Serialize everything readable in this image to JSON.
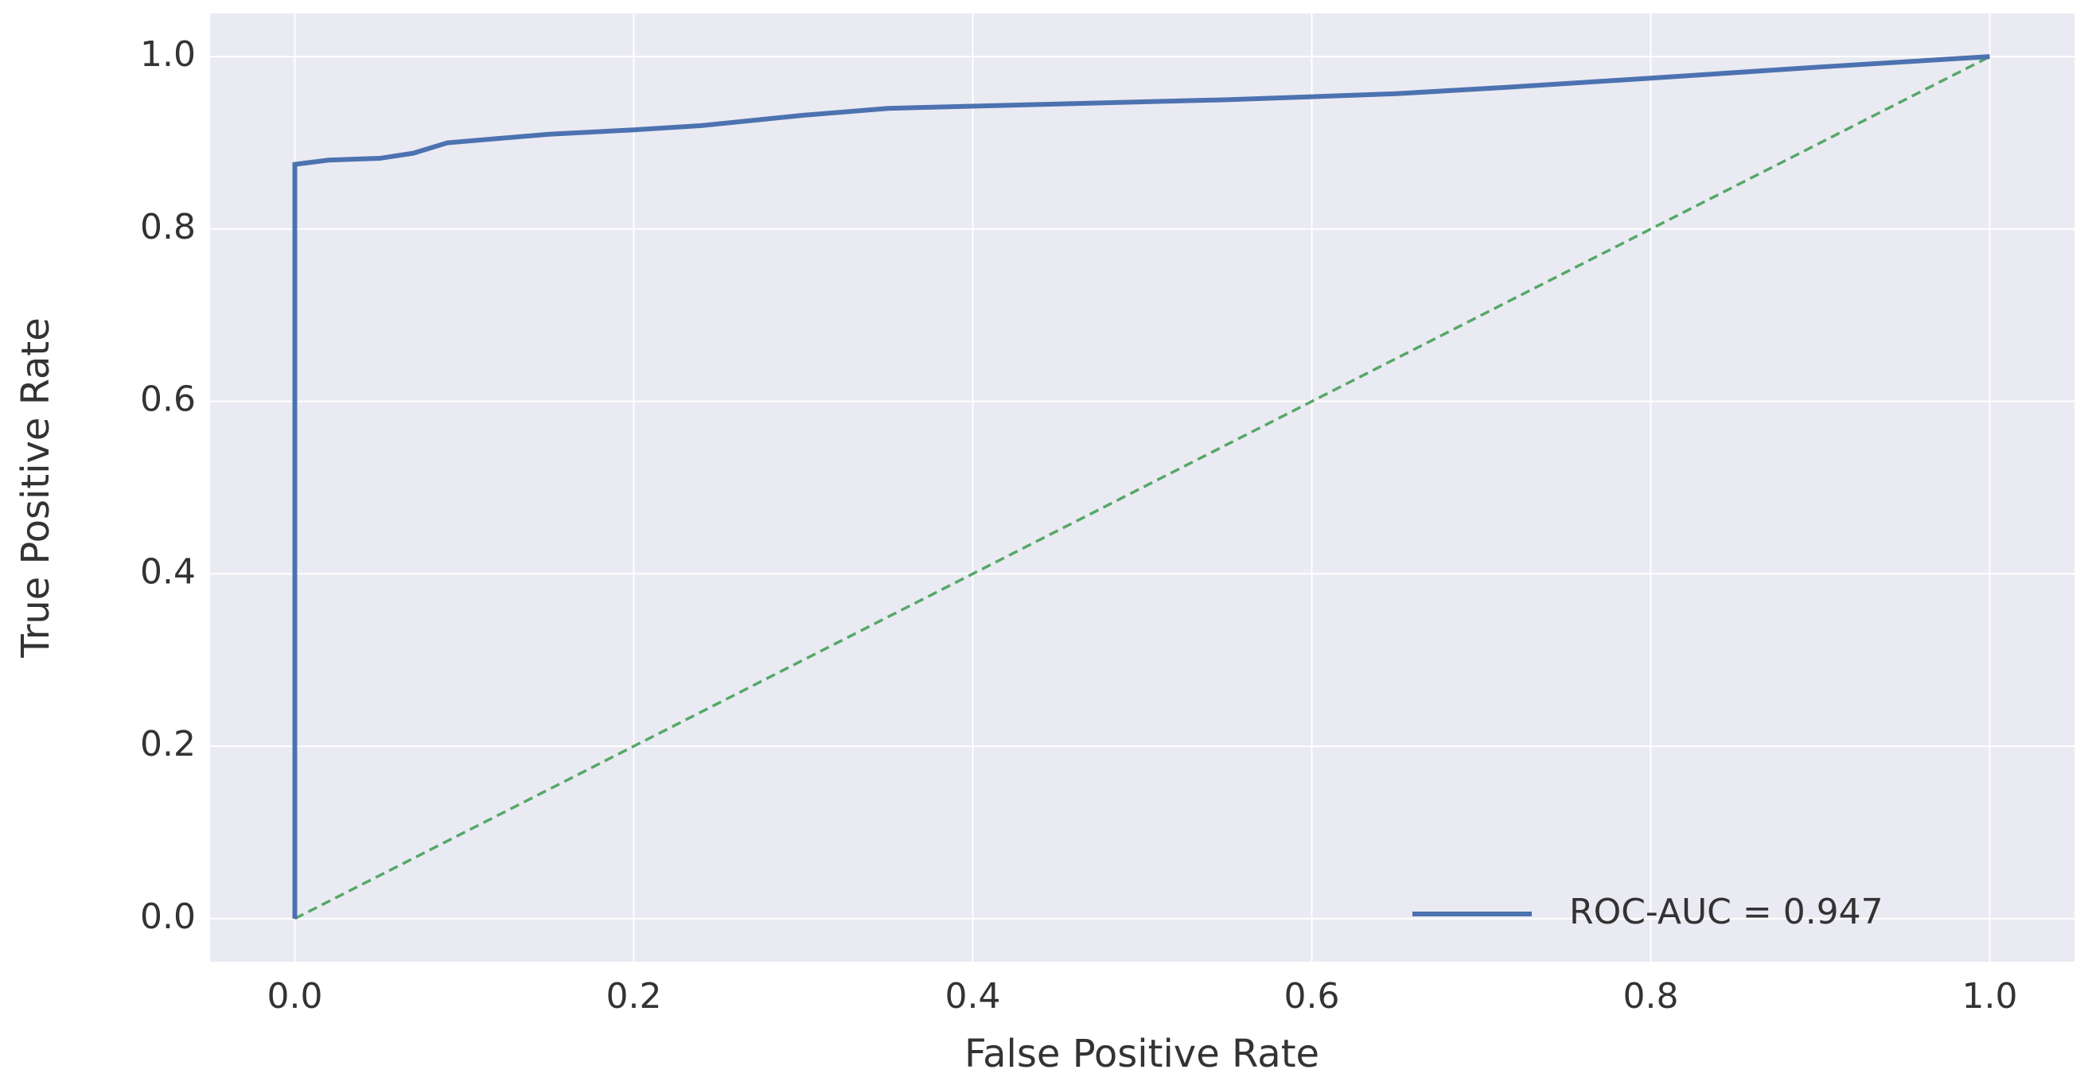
{
  "chart_data": {
    "type": "line",
    "xlabel": "False Positive Rate",
    "ylabel": "True Positive Rate",
    "xlim": [
      -0.05,
      1.05
    ],
    "ylim": [
      -0.05,
      1.05
    ],
    "xticks": [
      {
        "value": 0,
        "label": "0.0"
      },
      0.2,
      0.4,
      0.6,
      0.8,
      {
        "value": 1,
        "label": "1.0"
      }
    ],
    "yticks": [
      {
        "value": 0,
        "label": "0.0"
      },
      0.2,
      0.4,
      0.6,
      0.8,
      {
        "value": 1,
        "label": "1.0"
      }
    ],
    "grid": true,
    "legend": "lower right",
    "series": [
      {
        "name": "ROC-AUC = 0.947",
        "color": "#4c72b0",
        "style": "solid",
        "x": [
          0,
          0,
          0.02,
          0.05,
          0.07,
          0.09,
          0.15,
          0.2,
          0.24,
          0.3,
          0.35,
          0.45,
          0.55,
          0.65,
          0.72,
          0.8,
          0.9,
          1
        ],
        "values": [
          0,
          0.875,
          0.88,
          0.882,
          0.888,
          0.9,
          0.91,
          0.915,
          0.92,
          0.932,
          0.94,
          0.945,
          0.95,
          0.957,
          0.965,
          0.975,
          0.988,
          1
        ]
      },
      {
        "color": "#55a868",
        "style": "dashed",
        "x": [
          0,
          1
        ],
        "values": [
          0,
          1
        ]
      }
    ]
  }
}
